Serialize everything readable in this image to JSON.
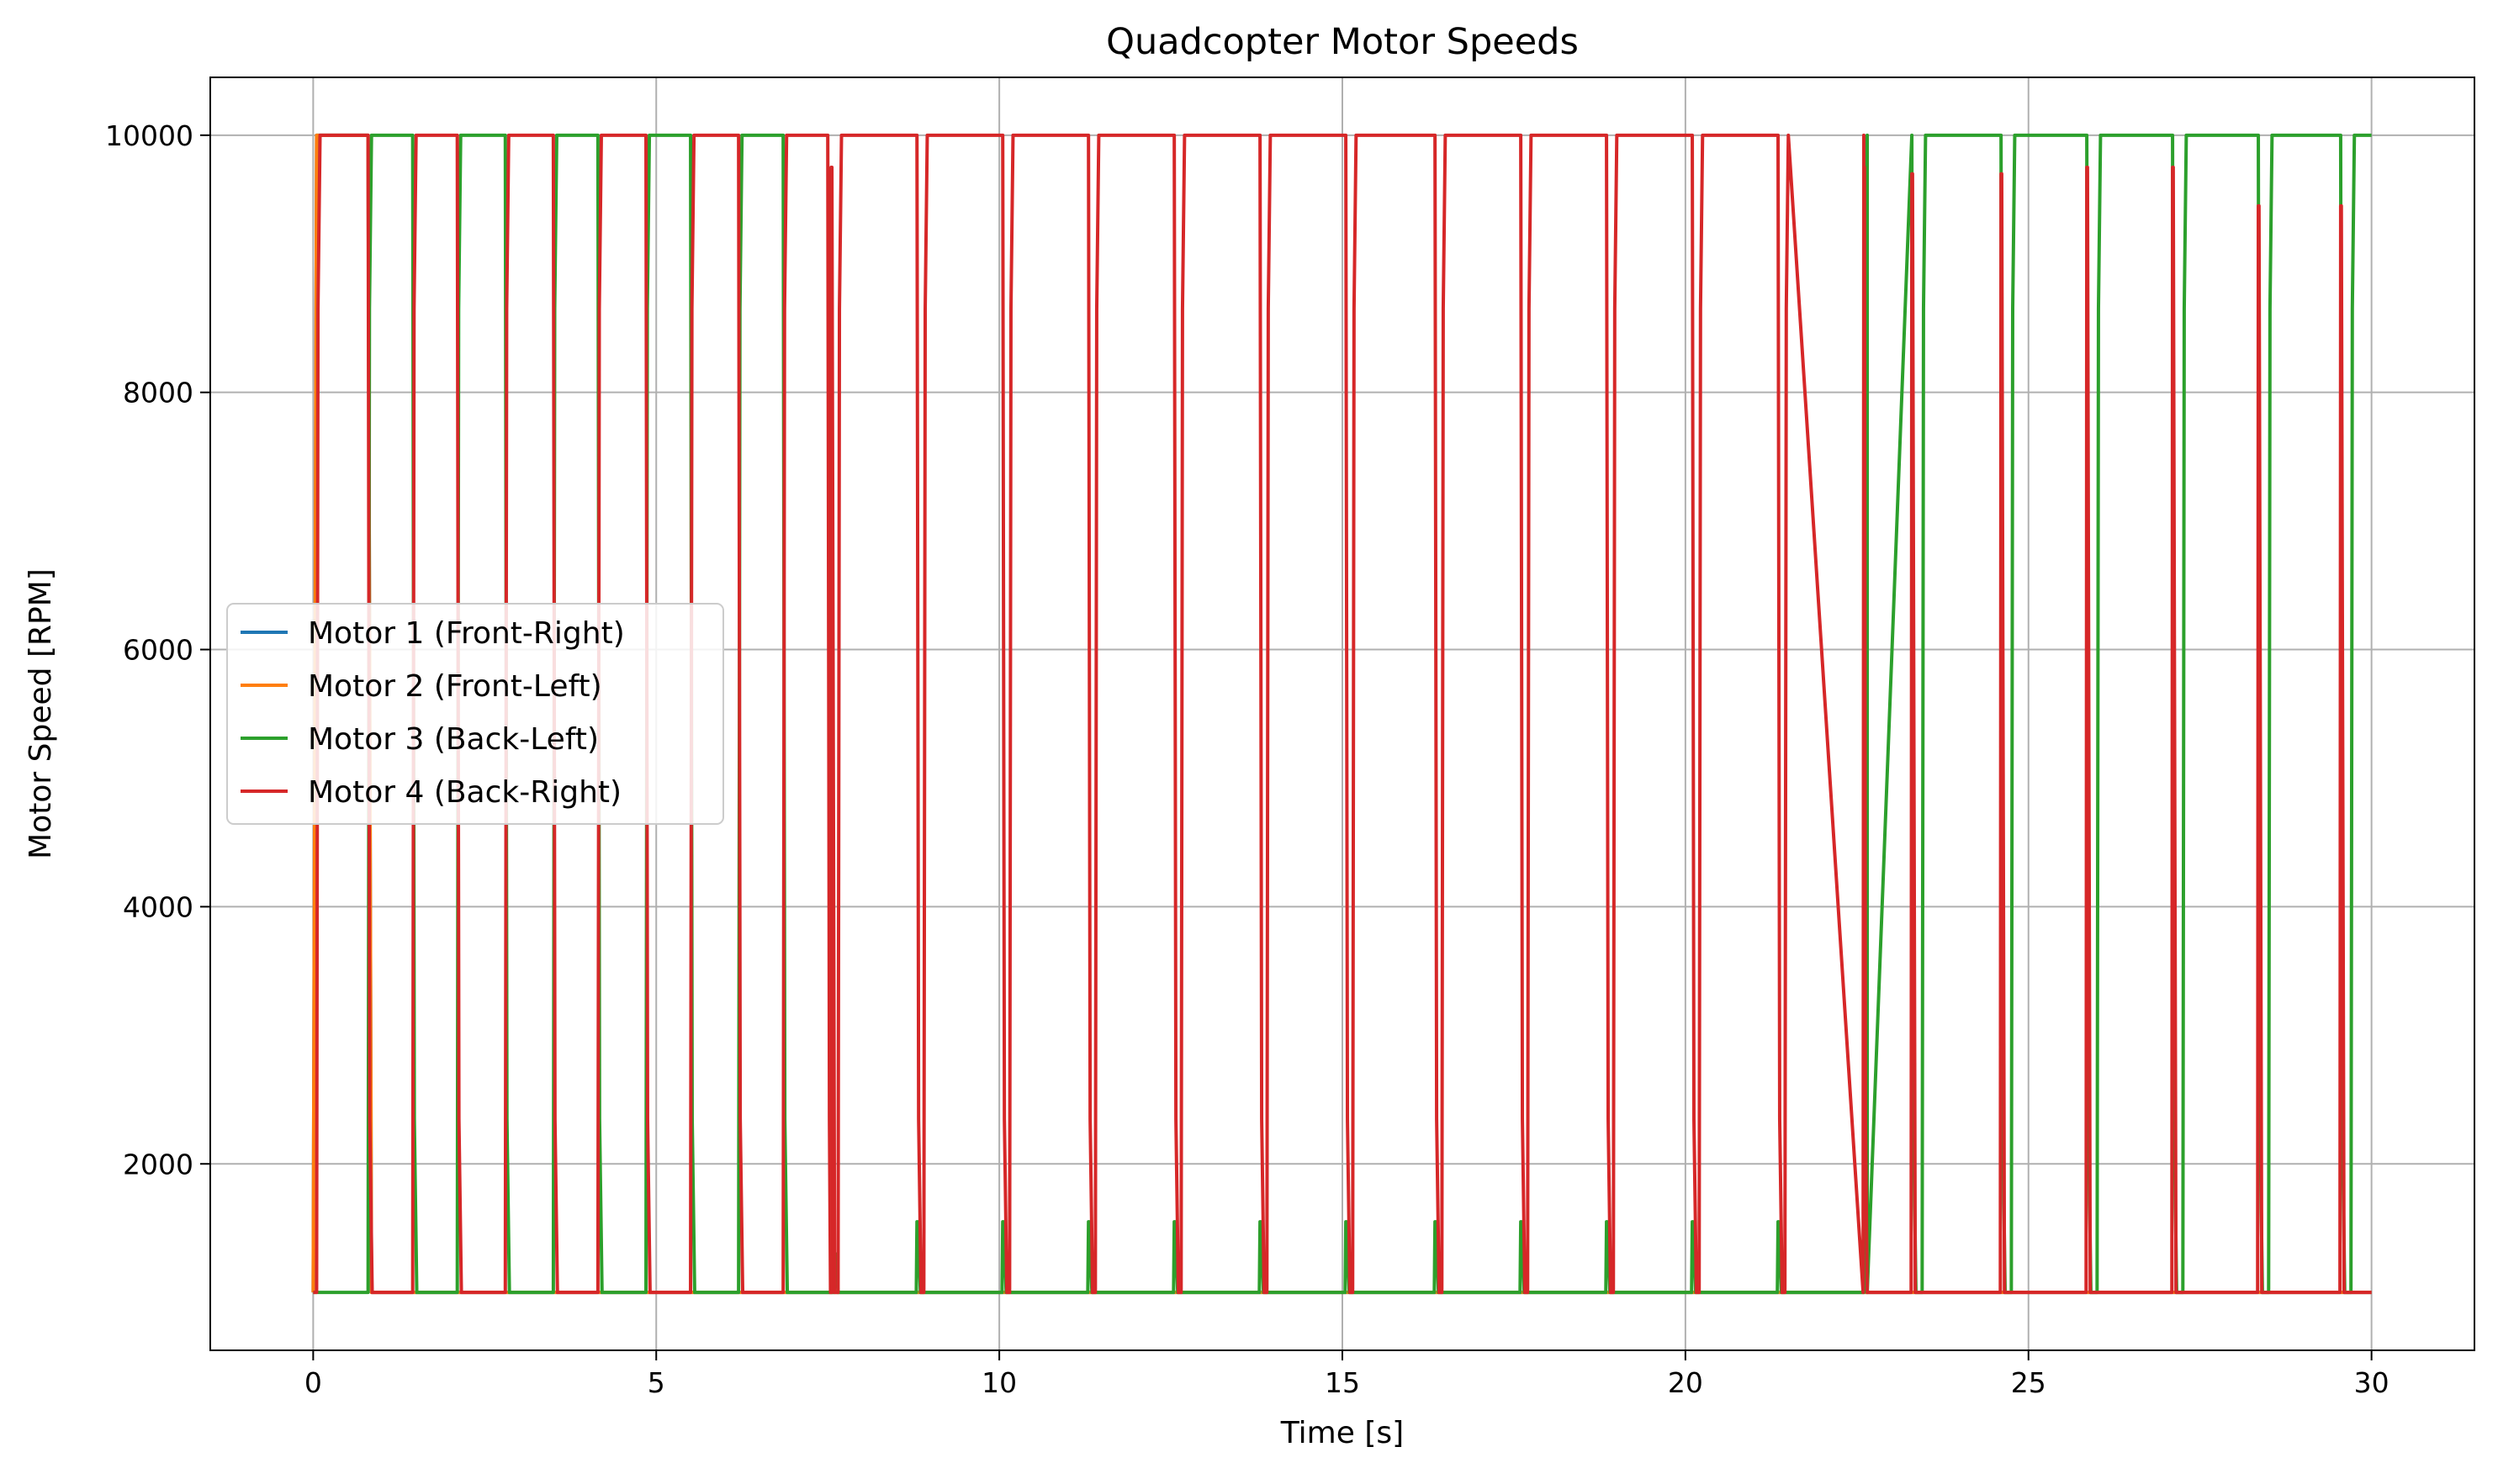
{
  "chart_data": {
    "type": "line",
    "title": "Quadcopter Motor Speeds",
    "xlabel": "Time [s]",
    "ylabel": "Motor Speed [RPM]",
    "xlim": [
      -1.5,
      31.5
    ],
    "ylim": [
      550,
      10450
    ],
    "xticks": [
      0,
      5,
      10,
      15,
      20,
      25,
      30
    ],
    "yticks": [
      2000,
      4000,
      6000,
      8000,
      10000
    ],
    "grid": true,
    "legend_position": "center-left",
    "series": [
      {
        "name": "Motor 1 (Front-Right)",
        "color": "#1f77b4",
        "segments": [
          [
            0,
            1000
          ],
          [
            0.05,
            10000
          ],
          [
            0.8,
            10000
          ],
          [
            0.85,
            1000
          ],
          [
            30,
            1000
          ]
        ]
      },
      {
        "name": "Motor 2 (Front-Left)",
        "color": "#ff7f0e",
        "segments": [
          [
            0,
            1000
          ],
          [
            0.05,
            10000
          ],
          [
            0.8,
            10000
          ],
          [
            0.85,
            1000
          ],
          [
            30,
            1000
          ]
        ]
      },
      {
        "name": "Motor 3 (Back-Left)",
        "color": "#2ca02c",
        "high_intervals": [
          [
            0.8,
            1.45
          ],
          [
            2.1,
            2.8
          ],
          [
            3.5,
            4.15
          ],
          [
            4.85,
            5.5
          ],
          [
            6.2,
            6.85
          ],
          [
            22.6,
            23.3
          ],
          [
            23.45,
            24.6
          ],
          [
            24.75,
            25.85
          ],
          [
            26,
            27.1
          ],
          [
            27.25,
            28.35
          ],
          [
            28.5,
            29.55
          ],
          [
            29.7,
            30
          ]
        ],
        "spikes": [
          [
            7.6,
            1300
          ],
          [
            8.8,
            1550
          ],
          [
            10.05,
            1550
          ],
          [
            11.3,
            1550
          ],
          [
            12.55,
            1550
          ],
          [
            13.8,
            1550
          ],
          [
            15.05,
            1550
          ],
          [
            16.35,
            1550
          ],
          [
            17.6,
            1550
          ],
          [
            18.85,
            1550
          ],
          [
            20.1,
            1550
          ],
          [
            21.35,
            1550
          ],
          [
            22.6,
            1550
          ]
        ]
      },
      {
        "name": "Motor 4 (Back-Right)",
        "color": "#d62728",
        "high_intervals": [
          [
            0.05,
            0.8
          ],
          [
            1.45,
            2.1
          ],
          [
            2.8,
            3.5
          ],
          [
            4.15,
            4.85
          ],
          [
            5.5,
            6.2
          ],
          [
            6.85,
            7.5
          ],
          [
            7.65,
            8.8
          ],
          [
            8.9,
            10.05
          ],
          [
            10.15,
            11.3
          ],
          [
            11.4,
            12.55
          ],
          [
            12.65,
            13.8
          ],
          [
            13.9,
            15.05
          ],
          [
            15.15,
            16.35
          ],
          [
            16.45,
            17.6
          ],
          [
            17.7,
            18.85
          ],
          [
            18.95,
            20.1
          ],
          [
            20.2,
            21.35
          ],
          [
            21.45,
            22.6
          ]
        ],
        "spikes": [
          [
            7.55,
            9750
          ],
          [
            22.6,
            9750
          ],
          [
            23.3,
            9700
          ],
          [
            24.6,
            9700
          ],
          [
            25.85,
            9750
          ],
          [
            27.1,
            9750
          ],
          [
            28.35,
            9450
          ],
          [
            29.55,
            9450
          ]
        ]
      }
    ],
    "low_value": 1000,
    "high_value": 10000
  }
}
